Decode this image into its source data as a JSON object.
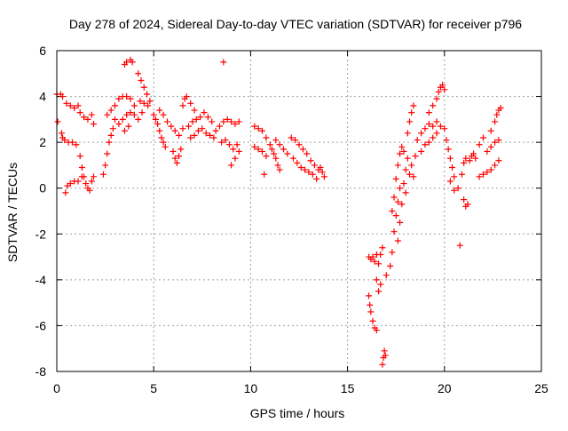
{
  "chart_data": {
    "type": "scatter",
    "title": "Day 278 of 2024, Sidereal Day-to-day VTEC variation (SDTVAR) for receiver p796",
    "xlabel": "GPS time / hours",
    "ylabel": "SDTVAR / TECUs",
    "xlim": [
      0,
      25
    ],
    "ylim": [
      -8,
      6
    ],
    "x_ticks": [
      0,
      5,
      10,
      15,
      20,
      25
    ],
    "y_ticks": [
      -8,
      -6,
      -4,
      -2,
      0,
      2,
      4,
      6
    ],
    "x_tick_labels": [
      "0",
      "5",
      "10",
      "15",
      "20",
      "25"
    ],
    "y_tick_labels": [
      "-8",
      "-6",
      "-4",
      "-2",
      "0",
      "2",
      "4",
      "6"
    ],
    "grid": true,
    "marker": "+",
    "marker_color": "#ff0000",
    "series": [
      {
        "name": "SDTVAR",
        "points": [
          [
            0.0,
            4.1
          ],
          [
            0.05,
            2.9
          ],
          [
            0.2,
            4.1
          ],
          [
            0.25,
            2.4
          ],
          [
            0.3,
            2.2
          ],
          [
            0.3,
            4.0
          ],
          [
            0.5,
            3.7
          ],
          [
            0.7,
            3.6
          ],
          [
            0.9,
            3.5
          ],
          [
            1.1,
            3.6
          ],
          [
            0.4,
            2.1
          ],
          [
            0.6,
            2.0
          ],
          [
            0.8,
            2.0
          ],
          [
            1.0,
            1.9
          ],
          [
            0.45,
            -0.2
          ],
          [
            0.55,
            0.1
          ],
          [
            0.7,
            0.2
          ],
          [
            0.9,
            0.3
          ],
          [
            1.1,
            0.3
          ],
          [
            1.3,
            0.5
          ],
          [
            1.2,
            1.4
          ],
          [
            1.3,
            0.9
          ],
          [
            1.4,
            0.5
          ],
          [
            1.5,
            0.2
          ],
          [
            1.6,
            0.0
          ],
          [
            1.7,
            -0.1
          ],
          [
            1.8,
            0.3
          ],
          [
            1.9,
            0.5
          ],
          [
            1.2,
            3.3
          ],
          [
            1.4,
            3.1
          ],
          [
            1.6,
            3.0
          ],
          [
            1.8,
            3.2
          ],
          [
            1.9,
            2.8
          ],
          [
            2.4,
            0.6
          ],
          [
            2.5,
            1.0
          ],
          [
            2.6,
            1.5
          ],
          [
            2.7,
            2.0
          ],
          [
            2.8,
            2.3
          ],
          [
            2.9,
            2.6
          ],
          [
            3.0,
            3.0
          ],
          [
            2.6,
            3.2
          ],
          [
            2.8,
            3.4
          ],
          [
            3.0,
            3.6
          ],
          [
            3.2,
            3.9
          ],
          [
            3.4,
            4.0
          ],
          [
            3.6,
            4.0
          ],
          [
            3.8,
            3.9
          ],
          [
            3.2,
            2.8
          ],
          [
            3.4,
            3.0
          ],
          [
            3.6,
            3.2
          ],
          [
            3.8,
            3.3
          ],
          [
            4.0,
            3.2
          ],
          [
            4.2,
            3.0
          ],
          [
            4.4,
            3.3
          ],
          [
            3.5,
            2.5
          ],
          [
            3.7,
            2.7
          ],
          [
            4.0,
            3.6
          ],
          [
            4.3,
            3.8
          ],
          [
            4.5,
            3.7
          ],
          [
            4.7,
            3.6
          ],
          [
            3.5,
            5.4
          ],
          [
            3.6,
            5.5
          ],
          [
            3.8,
            5.6
          ],
          [
            3.9,
            5.5
          ],
          [
            4.2,
            5.0
          ],
          [
            4.35,
            4.7
          ],
          [
            4.5,
            4.4
          ],
          [
            4.65,
            4.1
          ],
          [
            4.8,
            3.8
          ],
          [
            5.0,
            3.2
          ],
          [
            5.1,
            3.0
          ],
          [
            5.2,
            2.8
          ],
          [
            5.3,
            2.5
          ],
          [
            5.4,
            2.2
          ],
          [
            5.5,
            2.0
          ],
          [
            5.6,
            1.8
          ],
          [
            5.3,
            3.4
          ],
          [
            5.5,
            3.2
          ],
          [
            5.7,
            2.9
          ],
          [
            5.9,
            2.7
          ],
          [
            6.1,
            2.5
          ],
          [
            6.3,
            2.3
          ],
          [
            6.5,
            2.6
          ],
          [
            6.0,
            1.6
          ],
          [
            6.1,
            1.3
          ],
          [
            6.2,
            1.1
          ],
          [
            6.3,
            1.4
          ],
          [
            6.4,
            1.7
          ],
          [
            6.5,
            3.6
          ],
          [
            6.6,
            3.9
          ],
          [
            6.7,
            4.0
          ],
          [
            6.9,
            3.7
          ],
          [
            7.1,
            3.4
          ],
          [
            6.8,
            2.7
          ],
          [
            7.0,
            2.9
          ],
          [
            7.2,
            3.0
          ],
          [
            7.4,
            3.1
          ],
          [
            7.6,
            3.3
          ],
          [
            7.8,
            3.1
          ],
          [
            8.0,
            2.9
          ],
          [
            6.9,
            2.2
          ],
          [
            7.1,
            2.3
          ],
          [
            7.3,
            2.5
          ],
          [
            7.5,
            2.6
          ],
          [
            7.7,
            2.4
          ],
          [
            7.9,
            2.3
          ],
          [
            8.1,
            2.2
          ],
          [
            8.2,
            2.5
          ],
          [
            8.4,
            2.7
          ],
          [
            8.6,
            2.9
          ],
          [
            8.8,
            3.0
          ],
          [
            9.0,
            2.9
          ],
          [
            9.2,
            2.8
          ],
          [
            9.4,
            2.9
          ],
          [
            8.5,
            2.0
          ],
          [
            8.7,
            2.1
          ],
          [
            8.9,
            1.9
          ],
          [
            9.1,
            1.7
          ],
          [
            9.3,
            1.9
          ],
          [
            8.6,
            5.5
          ],
          [
            9.0,
            1.0
          ],
          [
            9.2,
            1.3
          ],
          [
            9.4,
            1.6
          ],
          [
            10.2,
            2.7
          ],
          [
            10.4,
            2.6
          ],
          [
            10.6,
            2.5
          ],
          [
            10.8,
            2.2
          ],
          [
            10.2,
            1.8
          ],
          [
            10.4,
            1.7
          ],
          [
            10.6,
            1.6
          ],
          [
            10.8,
            1.4
          ],
          [
            10.7,
            0.6
          ],
          [
            11.0,
            1.9
          ],
          [
            11.1,
            1.7
          ],
          [
            11.2,
            1.5
          ],
          [
            11.3,
            1.3
          ],
          [
            11.4,
            1.0
          ],
          [
            11.5,
            0.8
          ],
          [
            11.3,
            2.1
          ],
          [
            11.5,
            1.9
          ],
          [
            11.7,
            1.7
          ],
          [
            11.9,
            1.5
          ],
          [
            12.1,
            2.2
          ],
          [
            12.3,
            2.1
          ],
          [
            12.5,
            1.9
          ],
          [
            12.7,
            1.7
          ],
          [
            12.9,
            1.5
          ],
          [
            13.1,
            1.2
          ],
          [
            13.3,
            1.0
          ],
          [
            12.2,
            1.3
          ],
          [
            12.4,
            1.1
          ],
          [
            12.6,
            0.9
          ],
          [
            12.8,
            0.8
          ],
          [
            13.0,
            0.7
          ],
          [
            13.2,
            0.6
          ],
          [
            13.4,
            0.4
          ],
          [
            13.5,
            0.8
          ],
          [
            13.6,
            0.9
          ],
          [
            13.7,
            0.7
          ],
          [
            13.8,
            0.5
          ],
          [
            16.1,
            -3.0
          ],
          [
            16.2,
            -3.1
          ],
          [
            16.3,
            -3.0
          ],
          [
            16.4,
            -3.2
          ],
          [
            16.5,
            -2.9
          ],
          [
            16.1,
            -4.7
          ],
          [
            16.15,
            -5.1
          ],
          [
            16.2,
            -5.4
          ],
          [
            16.3,
            -5.8
          ],
          [
            16.4,
            -6.1
          ],
          [
            16.5,
            -6.2
          ],
          [
            16.6,
            -3.3
          ],
          [
            16.7,
            -2.9
          ],
          [
            16.8,
            -2.6
          ],
          [
            16.5,
            -4.0
          ],
          [
            16.6,
            -4.5
          ],
          [
            16.7,
            -4.2
          ],
          [
            16.8,
            -7.7
          ],
          [
            16.85,
            -7.4
          ],
          [
            16.9,
            -7.1
          ],
          [
            16.95,
            -7.3
          ],
          [
            17.0,
            -3.8
          ],
          [
            17.2,
            -3.4
          ],
          [
            17.3,
            -2.8
          ],
          [
            17.4,
            -1.9
          ],
          [
            17.5,
            -1.2
          ],
          [
            17.6,
            -0.6
          ],
          [
            17.7,
            0.0
          ],
          [
            17.3,
            -1.0
          ],
          [
            17.4,
            -0.4
          ],
          [
            17.5,
            0.4
          ],
          [
            17.6,
            1.0
          ],
          [
            17.7,
            1.5
          ],
          [
            17.8,
            1.8
          ],
          [
            17.9,
            1.6
          ],
          [
            17.6,
            -2.3
          ],
          [
            17.7,
            -1.5
          ],
          [
            17.8,
            -0.7
          ],
          [
            17.9,
            0.2
          ],
          [
            18.0,
            0.8
          ],
          [
            18.1,
            1.3
          ],
          [
            18.0,
            -0.2
          ],
          [
            18.2,
            0.6
          ],
          [
            18.3,
            1.0
          ],
          [
            18.4,
            0.5
          ],
          [
            18.5,
            1.4
          ],
          [
            18.1,
            2.4
          ],
          [
            18.2,
            2.9
          ],
          [
            18.3,
            3.3
          ],
          [
            18.4,
            3.6
          ],
          [
            18.6,
            2.1
          ],
          [
            18.8,
            2.4
          ],
          [
            19.0,
            2.6
          ],
          [
            19.2,
            2.8
          ],
          [
            19.4,
            2.7
          ],
          [
            19.6,
            2.9
          ],
          [
            19.8,
            2.7
          ],
          [
            18.8,
            1.6
          ],
          [
            19.0,
            1.9
          ],
          [
            19.2,
            2.0
          ],
          [
            19.4,
            2.2
          ],
          [
            19.6,
            2.4
          ],
          [
            19.2,
            3.3
          ],
          [
            19.4,
            3.6
          ],
          [
            19.6,
            3.9
          ],
          [
            19.7,
            4.2
          ],
          [
            19.8,
            4.4
          ],
          [
            19.9,
            4.5
          ],
          [
            20.0,
            4.3
          ],
          [
            20.0,
            2.6
          ],
          [
            20.1,
            2.1
          ],
          [
            20.2,
            1.7
          ],
          [
            20.3,
            1.3
          ],
          [
            20.4,
            0.9
          ],
          [
            20.5,
            0.5
          ],
          [
            20.3,
            0.3
          ],
          [
            20.5,
            -0.1
          ],
          [
            20.7,
            0.0
          ],
          [
            20.9,
            0.6
          ],
          [
            21.0,
            1.1
          ],
          [
            21.1,
            1.3
          ],
          [
            20.8,
            -2.5
          ],
          [
            21.0,
            -0.5
          ],
          [
            21.1,
            -0.8
          ],
          [
            21.2,
            -0.7
          ],
          [
            21.3,
            1.2
          ],
          [
            21.4,
            1.4
          ],
          [
            21.5,
            1.5
          ],
          [
            21.6,
            1.3
          ],
          [
            21.8,
            1.9
          ],
          [
            22.0,
            2.2
          ],
          [
            22.2,
            1.6
          ],
          [
            22.4,
            1.8
          ],
          [
            22.6,
            2.0
          ],
          [
            22.8,
            2.1
          ],
          [
            21.8,
            0.5
          ],
          [
            22.0,
            0.6
          ],
          [
            22.2,
            0.7
          ],
          [
            22.4,
            0.8
          ],
          [
            22.6,
            1.0
          ],
          [
            22.8,
            1.2
          ],
          [
            22.4,
            2.5
          ],
          [
            22.6,
            2.9
          ],
          [
            22.7,
            3.2
          ],
          [
            22.8,
            3.4
          ],
          [
            22.9,
            3.5
          ]
        ]
      }
    ]
  }
}
